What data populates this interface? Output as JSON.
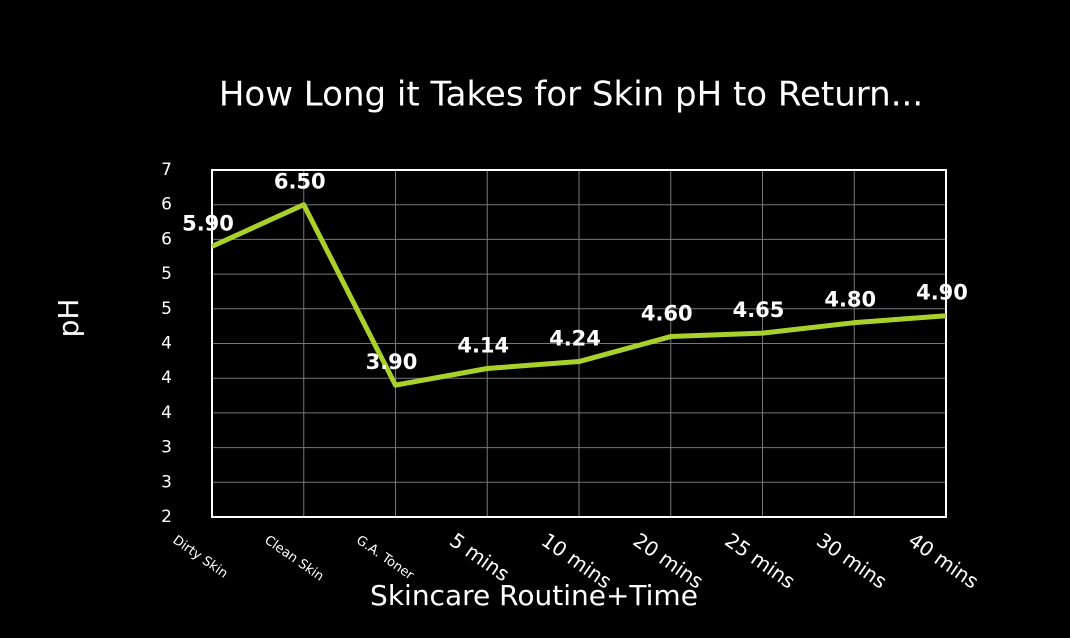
{
  "chart_data": {
    "type": "line",
    "title": "How Long it Takes for Skin pH to Return...",
    "x_label": "Skincare Routine+Time",
    "y_label": "pH",
    "categories": [
      "Dirty Skin",
      "Clean Skin",
      "G.A. Toner",
      "5 mins",
      "10 mins",
      "20 mins",
      "25 mins",
      "30 mins",
      "40 mins"
    ],
    "series": [
      {
        "name": "pH",
        "color": "#a9d12b",
        "values": [
          5.9,
          6.5,
          3.9,
          4.14,
          4.24,
          4.6,
          4.65,
          4.8,
          4.9
        ],
        "value_labels": [
          "5.90",
          "6.50",
          "3.90",
          "4.14",
          "4.24",
          "4.60",
          "4.65",
          "4.80",
          "4.90"
        ]
      }
    ],
    "ylim": [
      2,
      7
    ],
    "yticks": [
      2,
      {
        "value": 2.5,
        "label": "3"
      },
      3,
      {
        "value": 3.5,
        "label": "4"
      },
      4,
      {
        "value": 4.5,
        "label": "4"
      },
      5,
      {
        "value": 5.5,
        "label": "5"
      },
      6,
      {
        "value": 6.5,
        "label": "6"
      },
      7
    ],
    "grid": true
  }
}
